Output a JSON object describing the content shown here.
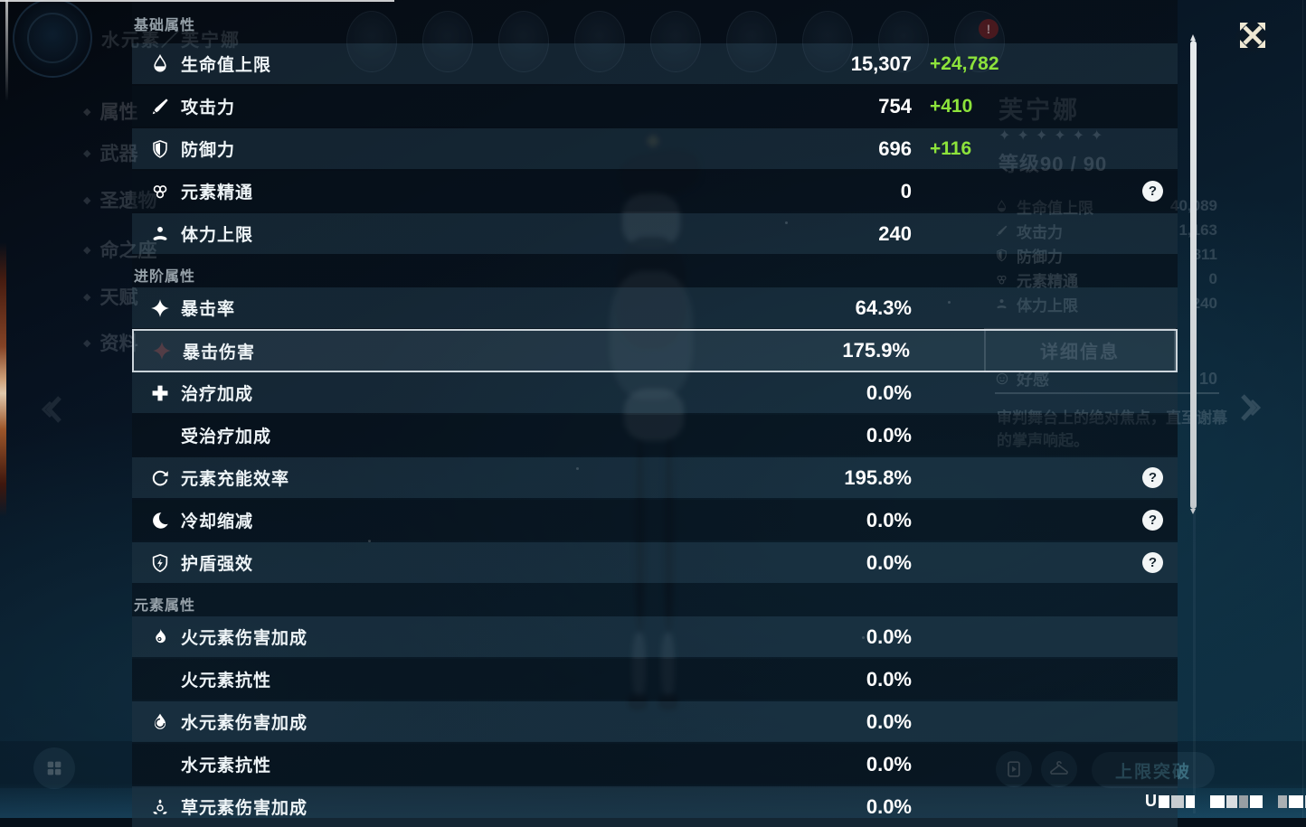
{
  "overlay": {
    "help_glyph": "?",
    "sections": [
      {
        "key": "basic",
        "title": "基础属性",
        "rows": [
          {
            "key": "max-hp",
            "icon": "hp-icon",
            "label": "生命值上限",
            "value": "15,307",
            "bonus": "+24,782"
          },
          {
            "key": "atk",
            "icon": "atk-icon",
            "label": "攻击力",
            "value": "754",
            "bonus": "+410"
          },
          {
            "key": "def",
            "icon": "def-icon",
            "label": "防御力",
            "value": "696",
            "bonus": "+116"
          },
          {
            "key": "elemental-mastery",
            "icon": "em-icon",
            "label": "元素精通",
            "value": "0",
            "help": true
          },
          {
            "key": "max-stamina",
            "icon": "stamina-icon",
            "label": "体力上限",
            "value": "240"
          }
        ]
      },
      {
        "key": "advanced",
        "title": "进阶属性",
        "rows": [
          {
            "key": "crit-rate",
            "icon": "crit-rate-icon",
            "label": "暴击率",
            "value": "64.3%"
          },
          {
            "key": "crit-dmg",
            "icon": "crit-dmg-icon",
            "label": "暴击伤害",
            "value": "175.9%",
            "selected": true
          },
          {
            "key": "healing-bonus",
            "icon": "healing-icon",
            "label": "治疗加成",
            "value": "0.0%"
          },
          {
            "key": "incoming-healing-bonus",
            "icon": null,
            "label": "受治疗加成",
            "value": "0.0%"
          },
          {
            "key": "energy-recharge",
            "icon": "energy-recharge-icon",
            "label": "元素充能效率",
            "value": "195.8%",
            "help": true
          },
          {
            "key": "cd-reduction",
            "icon": "cd-icon",
            "label": "冷却缩减",
            "value": "0.0%",
            "help": true
          },
          {
            "key": "shield-strength",
            "icon": "shield-strength-icon",
            "label": "护盾强效",
            "value": "0.0%",
            "help": true
          }
        ]
      },
      {
        "key": "elemental",
        "title": "元素属性",
        "rows": [
          {
            "key": "pyro-dmg-bonus",
            "icon": "pyro-icon",
            "label": "火元素伤害加成",
            "value": "0.0%"
          },
          {
            "key": "pyro-res",
            "icon": null,
            "label": "火元素抗性",
            "value": "0.0%"
          },
          {
            "key": "hydro-dmg-bonus",
            "icon": "hydro-icon",
            "label": "水元素伤害加成",
            "value": "0.0%"
          },
          {
            "key": "hydro-res",
            "icon": null,
            "label": "水元素抗性",
            "value": "0.0%"
          },
          {
            "key": "dendro-dmg-bonus",
            "icon": "dendro-icon",
            "label": "草元素伤害加成",
            "value": "0.0%"
          }
        ]
      }
    ]
  },
  "background": {
    "element_name_plate": "水元素／芙宁娜",
    "sidebar": {
      "bullet_glyph": "◆",
      "items": [
        {
          "key": "attributes",
          "label": "属性"
        },
        {
          "key": "weapon",
          "label": "武器"
        },
        {
          "key": "artifacts",
          "label": "圣遗物"
        },
        {
          "key": "constellation",
          "label": "命之座"
        },
        {
          "key": "talents",
          "label": "天赋"
        },
        {
          "key": "profile",
          "label": "资料"
        }
      ]
    },
    "avatar_slots": 9,
    "badge": "!",
    "character": {
      "name": "芙宁娜",
      "stars": "✦✦✦✦✦✦",
      "level": "等级90 / 90",
      "stats": [
        {
          "icon": "hp-icon",
          "label": "生命值上限",
          "value": "40,089"
        },
        {
          "icon": "atk-icon",
          "label": "攻击力",
          "value": "1,163"
        },
        {
          "icon": "def-icon",
          "label": "防御力",
          "value": "811"
        },
        {
          "icon": "em-icon",
          "label": "元素精通",
          "value": "0"
        },
        {
          "icon": "stamina-icon",
          "label": "体力上限",
          "value": "240"
        }
      ],
      "details_button": "详细信息",
      "friendship_label": "好感",
      "friendship_value": "10",
      "description": "审判舞台上的绝对焦点，直至谢幕的掌声响起。"
    },
    "buttons": {
      "ascend": "上限突破"
    },
    "uid_prefix": "U"
  },
  "colors": {
    "bonus_green": "#8DE33B",
    "accent_cream": "#EFE8D3"
  }
}
